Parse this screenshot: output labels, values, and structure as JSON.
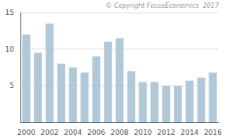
{
  "chart_data": {
    "type": "bar",
    "categories": [
      "2000",
      null,
      "2002",
      null,
      "2004",
      null,
      "2006",
      null,
      "2008",
      null,
      "2010",
      null,
      "2012",
      null,
      "2014",
      null,
      "2016"
    ],
    "values": [
      12.0,
      9.5,
      13.5,
      8.0,
      7.5,
      6.8,
      9.0,
      11.0,
      11.5,
      7.0,
      5.5,
      5.5,
      5.0,
      5.0,
      5.7,
      6.1,
      6.8
    ],
    "color": "#b0c8d8",
    "ylim": [
      0,
      15
    ],
    "yticks": [
      5,
      10,
      15
    ],
    "grid": true,
    "annotation": "© Copyright FocusEconomics  2017"
  }
}
